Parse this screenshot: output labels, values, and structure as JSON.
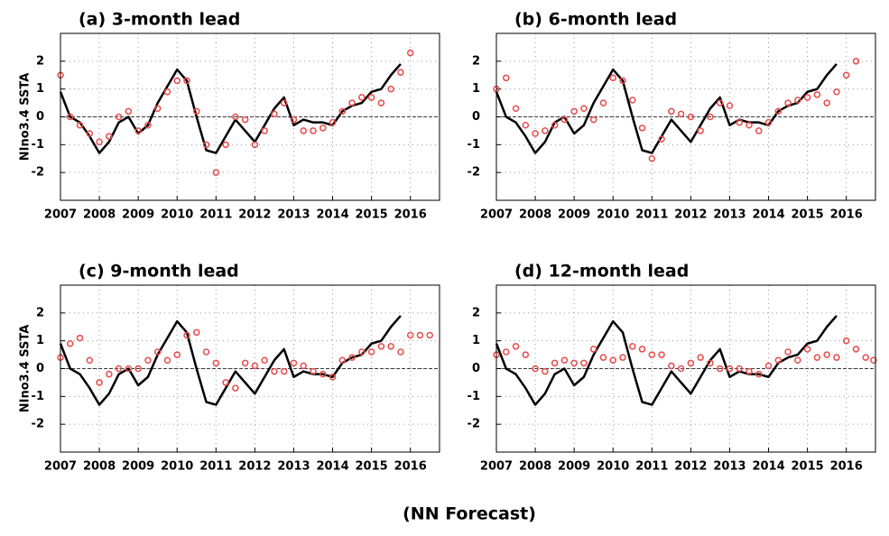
{
  "footer": "(NN Forecast)",
  "chart_data": [
    {
      "type": "line",
      "title": "(a) 3-month lead",
      "ylabel": "NIno3.4 SSTA",
      "xlim": [
        2007,
        2016.75
      ],
      "ylim": [
        -3,
        3
      ],
      "xticks": [
        2007,
        2008,
        2009,
        2010,
        2011,
        2012,
        2013,
        2014,
        2015,
        2016
      ],
      "yticks": [
        -2,
        -1,
        0,
        1,
        2
      ],
      "grid": true,
      "reference_line": 0,
      "series": [
        {
          "color": "#000000",
          "marker": "none",
          "x": [
            2007,
            2007.25,
            2007.5,
            2007.75,
            2008,
            2008.25,
            2008.5,
            2008.75,
            2009,
            2009.25,
            2009.5,
            2009.75,
            2010,
            2010.25,
            2010.5,
            2010.75,
            2011,
            2011.25,
            2011.5,
            2011.75,
            2012,
            2012.25,
            2012.5,
            2012.75,
            2013,
            2013.25,
            2013.5,
            2013.75,
            2014,
            2014.25,
            2014.5,
            2014.75,
            2015,
            2015.25,
            2015.5,
            2015.75
          ],
          "values": [
            0.9,
            0.0,
            -0.2,
            -0.7,
            -1.3,
            -0.9,
            -0.2,
            0.0,
            -0.6,
            -0.3,
            0.5,
            1.1,
            1.7,
            1.3,
            0.0,
            -1.2,
            -1.3,
            -0.7,
            -0.1,
            -0.5,
            -0.9,
            -0.3,
            0.3,
            0.7,
            -0.3,
            -0.1,
            -0.2,
            -0.2,
            -0.3,
            0.2,
            0.4,
            0.5,
            0.9,
            1.0,
            1.5,
            1.9
          ]
        },
        {
          "color": "#e84a4a",
          "marker": "circle",
          "x": [
            2007,
            2007.25,
            2007.5,
            2007.75,
            2008,
            2008.25,
            2008.5,
            2008.75,
            2009,
            2009.25,
            2009.5,
            2009.75,
            2010,
            2010.25,
            2010.5,
            2010.75,
            2011,
            2011.25,
            2011.5,
            2011.75,
            2012,
            2012.25,
            2012.5,
            2012.75,
            2013,
            2013.25,
            2013.5,
            2013.75,
            2014,
            2014.25,
            2014.5,
            2014.75,
            2015,
            2015.25,
            2015.5,
            2015.75,
            2016
          ],
          "values": [
            1.5,
            0.0,
            -0.3,
            -0.6,
            -0.9,
            -0.7,
            0.0,
            0.2,
            -0.5,
            -0.3,
            0.3,
            0.9,
            1.3,
            1.3,
            0.2,
            -1.0,
            -2.0,
            -1.0,
            0.0,
            -0.1,
            -1.0,
            -0.5,
            0.1,
            0.5,
            -0.1,
            -0.5,
            -0.5,
            -0.4,
            -0.2,
            0.2,
            0.5,
            0.7,
            0.7,
            0.5,
            1.0,
            1.6,
            2.3
          ]
        }
      ]
    },
    {
      "type": "line",
      "title": "(b) 6-month lead",
      "xlim": [
        2007,
        2016.75
      ],
      "ylim": [
        -3,
        3
      ],
      "xticks": [
        2007,
        2008,
        2009,
        2010,
        2011,
        2012,
        2013,
        2014,
        2015,
        2016
      ],
      "yticks": [
        -2,
        -1,
        0,
        1,
        2
      ],
      "grid": true,
      "reference_line": 0,
      "series": [
        {
          "color": "#000000",
          "marker": "none",
          "x": [
            2007,
            2007.25,
            2007.5,
            2007.75,
            2008,
            2008.25,
            2008.5,
            2008.75,
            2009,
            2009.25,
            2009.5,
            2009.75,
            2010,
            2010.25,
            2010.5,
            2010.75,
            2011,
            2011.25,
            2011.5,
            2011.75,
            2012,
            2012.25,
            2012.5,
            2012.75,
            2013,
            2013.25,
            2013.5,
            2013.75,
            2014,
            2014.25,
            2014.5,
            2014.75,
            2015,
            2015.25,
            2015.5,
            2015.75
          ],
          "values": [
            0.9,
            0.0,
            -0.2,
            -0.7,
            -1.3,
            -0.9,
            -0.2,
            0.0,
            -0.6,
            -0.3,
            0.5,
            1.1,
            1.7,
            1.3,
            0.0,
            -1.2,
            -1.3,
            -0.7,
            -0.1,
            -0.5,
            -0.9,
            -0.3,
            0.3,
            0.7,
            -0.3,
            -0.1,
            -0.2,
            -0.2,
            -0.3,
            0.2,
            0.4,
            0.5,
            0.9,
            1.0,
            1.5,
            1.9
          ]
        },
        {
          "color": "#e84a4a",
          "marker": "circle",
          "x": [
            2007,
            2007.25,
            2007.5,
            2007.75,
            2008,
            2008.25,
            2008.5,
            2008.75,
            2009,
            2009.25,
            2009.5,
            2009.75,
            2010,
            2010.25,
            2010.5,
            2010.75,
            2011,
            2011.25,
            2011.5,
            2011.75,
            2012,
            2012.25,
            2012.5,
            2012.75,
            2013,
            2013.25,
            2013.5,
            2013.75,
            2014,
            2014.25,
            2014.5,
            2014.75,
            2015,
            2015.25,
            2015.5,
            2015.75,
            2016,
            2016.25
          ],
          "values": [
            1.0,
            1.4,
            0.3,
            -0.3,
            -0.6,
            -0.5,
            -0.3,
            -0.1,
            0.2,
            0.3,
            -0.1,
            0.5,
            1.4,
            1.3,
            0.6,
            -0.4,
            -1.5,
            -0.8,
            0.2,
            0.1,
            0.0,
            -0.5,
            0.0,
            0.5,
            0.4,
            -0.2,
            -0.3,
            -0.5,
            -0.2,
            0.2,
            0.5,
            0.6,
            0.7,
            0.8,
            0.5,
            0.9,
            1.5,
            2.0
          ]
        }
      ]
    },
    {
      "type": "line",
      "title": "(c) 9-month lead",
      "ylabel": "NIno3.4 SSTA",
      "xlim": [
        2007,
        2016.75
      ],
      "ylim": [
        -3,
        3
      ],
      "xticks": [
        2007,
        2008,
        2009,
        2010,
        2011,
        2012,
        2013,
        2014,
        2015,
        2016
      ],
      "yticks": [
        -2,
        -1,
        0,
        1,
        2
      ],
      "grid": true,
      "reference_line": 0,
      "series": [
        {
          "color": "#000000",
          "marker": "none",
          "x": [
            2007,
            2007.25,
            2007.5,
            2007.75,
            2008,
            2008.25,
            2008.5,
            2008.75,
            2009,
            2009.25,
            2009.5,
            2009.75,
            2010,
            2010.25,
            2010.5,
            2010.75,
            2011,
            2011.25,
            2011.5,
            2011.75,
            2012,
            2012.25,
            2012.5,
            2012.75,
            2013,
            2013.25,
            2013.5,
            2013.75,
            2014,
            2014.25,
            2014.5,
            2014.75,
            2015,
            2015.25,
            2015.5,
            2015.75
          ],
          "values": [
            0.9,
            0.0,
            -0.2,
            -0.7,
            -1.3,
            -0.9,
            -0.2,
            0.0,
            -0.6,
            -0.3,
            0.5,
            1.1,
            1.7,
            1.3,
            0.0,
            -1.2,
            -1.3,
            -0.7,
            -0.1,
            -0.5,
            -0.9,
            -0.3,
            0.3,
            0.7,
            -0.3,
            -0.1,
            -0.2,
            -0.2,
            -0.3,
            0.2,
            0.4,
            0.5,
            0.9,
            1.0,
            1.5,
            1.9
          ]
        },
        {
          "color": "#e84a4a",
          "marker": "circle",
          "x": [
            2007,
            2007.25,
            2007.5,
            2007.75,
            2008,
            2008.25,
            2008.5,
            2008.75,
            2009,
            2009.25,
            2009.5,
            2009.75,
            2010,
            2010.25,
            2010.5,
            2010.75,
            2011,
            2011.25,
            2011.5,
            2011.75,
            2012,
            2012.25,
            2012.5,
            2012.75,
            2013,
            2013.25,
            2013.5,
            2013.75,
            2014,
            2014.25,
            2014.5,
            2014.75,
            2015,
            2015.25,
            2015.5,
            2015.75,
            2016,
            2016.25,
            2016.5
          ],
          "values": [
            0.4,
            0.9,
            1.1,
            0.3,
            -0.5,
            -0.2,
            0.0,
            0.0,
            0.0,
            0.3,
            0.6,
            0.3,
            0.5,
            1.2,
            1.3,
            0.6,
            0.2,
            -0.5,
            -0.7,
            0.2,
            0.1,
            0.3,
            -0.1,
            -0.1,
            0.2,
            0.1,
            -0.1,
            -0.2,
            -0.3,
            0.3,
            0.4,
            0.6,
            0.6,
            0.8,
            0.8,
            0.6,
            1.2,
            1.2,
            1.2
          ]
        }
      ]
    },
    {
      "type": "line",
      "title": "(d) 12-month lead",
      "xlim": [
        2007,
        2016.75
      ],
      "ylim": [
        -3,
        3
      ],
      "xticks": [
        2007,
        2008,
        2009,
        2010,
        2011,
        2012,
        2013,
        2014,
        2015,
        2016
      ],
      "yticks": [
        -2,
        -1,
        0,
        1,
        2
      ],
      "grid": true,
      "reference_line": 0,
      "series": [
        {
          "color": "#000000",
          "marker": "none",
          "x": [
            2007,
            2007.25,
            2007.5,
            2007.75,
            2008,
            2008.25,
            2008.5,
            2008.75,
            2009,
            2009.25,
            2009.5,
            2009.75,
            2010,
            2010.25,
            2010.5,
            2010.75,
            2011,
            2011.25,
            2011.5,
            2011.75,
            2012,
            2012.25,
            2012.5,
            2012.75,
            2013,
            2013.25,
            2013.5,
            2013.75,
            2014,
            2014.25,
            2014.5,
            2014.75,
            2015,
            2015.25,
            2015.5,
            2015.75
          ],
          "values": [
            0.9,
            0.0,
            -0.2,
            -0.7,
            -1.3,
            -0.9,
            -0.2,
            0.0,
            -0.6,
            -0.3,
            0.5,
            1.1,
            1.7,
            1.3,
            0.0,
            -1.2,
            -1.3,
            -0.7,
            -0.1,
            -0.5,
            -0.9,
            -0.3,
            0.3,
            0.7,
            -0.3,
            -0.1,
            -0.2,
            -0.2,
            -0.3,
            0.2,
            0.4,
            0.5,
            0.9,
            1.0,
            1.5,
            1.9
          ]
        },
        {
          "color": "#e84a4a",
          "marker": "circle",
          "x": [
            2007,
            2007.25,
            2007.5,
            2007.75,
            2008,
            2008.25,
            2008.5,
            2008.75,
            2009,
            2009.25,
            2009.5,
            2009.75,
            2010,
            2010.25,
            2010.5,
            2010.75,
            2011,
            2011.25,
            2011.5,
            2011.75,
            2012,
            2012.25,
            2012.5,
            2012.75,
            2013,
            2013.25,
            2013.5,
            2013.75,
            2014,
            2014.25,
            2014.5,
            2014.75,
            2015,
            2015.25,
            2015.5,
            2015.75,
            2016,
            2016.25,
            2016.5,
            2016.7
          ],
          "values": [
            0.5,
            0.6,
            0.8,
            0.5,
            0.0,
            -0.1,
            0.2,
            0.3,
            0.2,
            0.2,
            0.7,
            0.4,
            0.3,
            0.4,
            0.8,
            0.7,
            0.5,
            0.5,
            0.1,
            0.0,
            0.2,
            0.4,
            0.2,
            0.0,
            0.0,
            0.0,
            -0.1,
            -0.2,
            0.1,
            0.3,
            0.6,
            0.3,
            0.7,
            0.4,
            0.5,
            0.4,
            1.0,
            0.7,
            0.4,
            0.3
          ]
        }
      ]
    }
  ]
}
